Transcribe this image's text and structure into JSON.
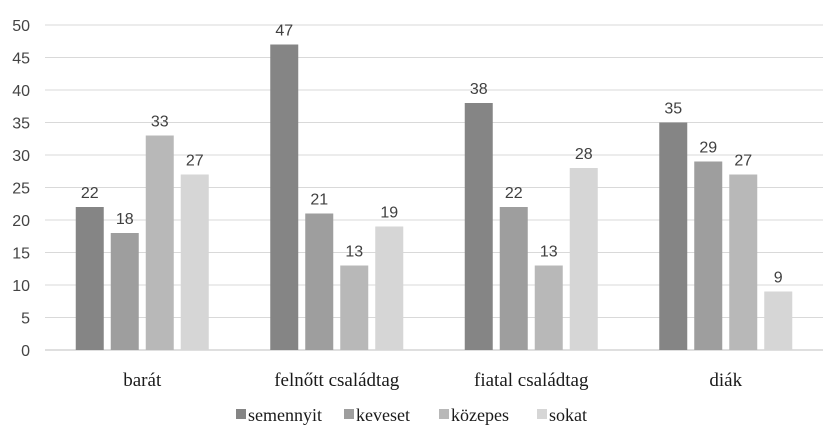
{
  "chart_data": {
    "type": "bar",
    "title": "",
    "xlabel": "",
    "ylabel": "",
    "ylim": [
      0,
      50
    ],
    "yticks": [
      0,
      5,
      10,
      15,
      20,
      25,
      30,
      35,
      40,
      45,
      50
    ],
    "grid": true,
    "legend_position": "bottom",
    "categories": [
      "barát",
      "felnőtt családtag",
      "fiatal családtag",
      "diák"
    ],
    "series": [
      {
        "name": "semennyit",
        "color": "#858585",
        "values": [
          22,
          47,
          38,
          35
        ]
      },
      {
        "name": "keveset",
        "color": "#9e9e9e",
        "values": [
          18,
          21,
          22,
          29
        ]
      },
      {
        "name": "közepes",
        "color": "#b8b8b8",
        "values": [
          33,
          13,
          13,
          27
        ]
      },
      {
        "name": "sokat",
        "color": "#d6d6d6",
        "values": [
          27,
          19,
          28,
          9
        ]
      }
    ],
    "grid_color": "#d9d9d9",
    "axis_color": "#bfbfbf"
  }
}
